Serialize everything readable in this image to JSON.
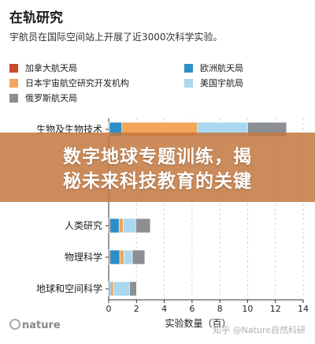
{
  "chart_data": {
    "type": "bar",
    "stacked": true,
    "orientation": "horizontal",
    "title": "在轨研究",
    "subtitle": "宇航员在国际空间站上开展了近3000次科学实验。",
    "xlabel": "实验数量（百）",
    "ylabel": "",
    "xlim": [
      0,
      14
    ],
    "xticks": [
      0,
      2,
      4,
      6,
      8,
      10,
      12,
      14
    ],
    "grid": "vertical dashed",
    "legend_position": "top",
    "categories": [
      "生物及生物技术",
      "",
      "",
      "人类研究",
      "物理科学",
      "地球和空间科学"
    ],
    "category_values_visible": [
      true,
      false,
      false,
      true,
      true,
      true
    ],
    "series": [
      {
        "name": "加拿大航天局",
        "color": "#c94a2b",
        "values": [
          0.05,
          0,
          0,
          0.1,
          0.1,
          0.05
        ]
      },
      {
        "name": "欧洲航天局",
        "color": "#2b90c9",
        "values": [
          0.9,
          0,
          0,
          0.65,
          0.7,
          0.1
        ]
      },
      {
        "name": "日本宇宙航空研究开发机构",
        "color": "#f2a65a",
        "values": [
          5.45,
          0,
          0,
          0.3,
          0.3,
          0.2
        ]
      },
      {
        "name": "美国宇航局",
        "color": "#a9d8f0",
        "values": [
          3.6,
          0,
          0,
          0.9,
          0.6,
          1.15
        ]
      },
      {
        "name": "俄罗斯航天局",
        "color": "#8b8f94",
        "values": [
          2.8,
          0,
          0,
          1.05,
          0.9,
          0.5
        ]
      }
    ]
  },
  "legend": [
    {
      "label": "加拿大航天局",
      "color": "#c94a2b",
      "col": 0,
      "row": 0
    },
    {
      "label": "欧洲航天局",
      "color": "#2b90c9",
      "col": 1,
      "row": 0
    },
    {
      "label": "日本宇宙航空研究开发机构",
      "color": "#f2a65a",
      "col": 0,
      "row": 1
    },
    {
      "label": "美国宇航局",
      "color": "#a9d8f0",
      "col": 1,
      "row": 1
    },
    {
      "label": "俄罗斯航天局",
      "color": "#8b8f94",
      "col": 0,
      "row": 2
    }
  ],
  "banner": {
    "line1": "数字地球专题训练，揭",
    "line2": "秘未来科技教育的关键"
  },
  "footer": {
    "logo": "nature",
    "watermark": "知乎 @Nature自然科研"
  }
}
